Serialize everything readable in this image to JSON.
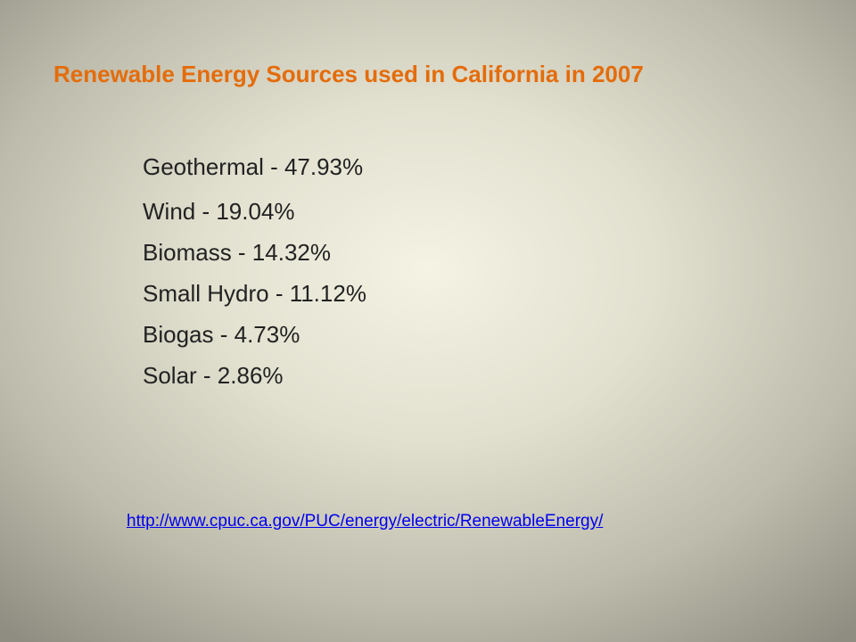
{
  "title": "Renewable Energy Sources used in California in 2007",
  "items": [
    "Geothermal - 47.93%",
    "Wind - 19.04%",
    "Biomass - 14.32%",
    "Small Hydro - 11.12%",
    "Biogas - 4.73%",
    "Solar - 2.86%"
  ],
  "link": "http://www.cpuc.ca.gov/PUC/energy/electric/RenewableEnergy/"
}
